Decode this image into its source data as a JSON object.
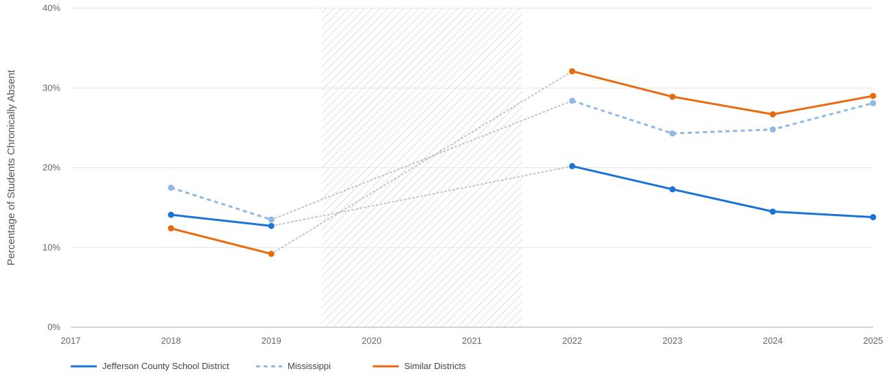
{
  "chart_data": {
    "type": "line",
    "title": "",
    "xlabel": "",
    "ylabel": "Percentage of Students Chronically Absent",
    "x": [
      2017,
      2018,
      2019,
      2020,
      2021,
      2022,
      2023,
      2024,
      2025
    ],
    "x_tick_labels": [
      "2017",
      "2018",
      "2019",
      "2020",
      "2021",
      "2022",
      "2023",
      "2024",
      "2025"
    ],
    "xlim": [
      2017,
      2025
    ],
    "ylim": [
      0,
      40
    ],
    "y_ticks": [
      0,
      10,
      20,
      30,
      40
    ],
    "y_tick_labels": [
      "0%",
      "10%",
      "20%",
      "30%",
      "40%"
    ],
    "grid": "horizontal",
    "shaded_region": {
      "x_start": 2019.5,
      "x_end": 2021.5,
      "pattern": "diagonal-hatch"
    },
    "gap_connector_style": "dotted-gray",
    "legend_position": "bottom-left",
    "series": [
      {
        "name": "Jefferson County School District",
        "color": "#1a73d6",
        "style": "solid",
        "points": [
          [
            2018,
            14.1
          ],
          [
            2019,
            12.7
          ],
          [
            2022,
            20.2
          ],
          [
            2023,
            17.3
          ],
          [
            2024,
            14.5
          ],
          [
            2025,
            13.8
          ]
        ]
      },
      {
        "name": "Mississippi",
        "color": "#8fb8e3",
        "style": "dashed",
        "points": [
          [
            2018,
            17.5
          ],
          [
            2019,
            13.5
          ],
          [
            2022,
            28.4
          ],
          [
            2023,
            24.3
          ],
          [
            2024,
            24.8
          ],
          [
            2025,
            28.1
          ]
        ]
      },
      {
        "name": "Similar Districts",
        "color": "#ea6a0f",
        "style": "solid",
        "points": [
          [
            2018,
            12.4
          ],
          [
            2019,
            9.2
          ],
          [
            2022,
            32.1
          ],
          [
            2023,
            28.9
          ],
          [
            2024,
            26.7
          ],
          [
            2025,
            29.0
          ]
        ]
      }
    ]
  }
}
